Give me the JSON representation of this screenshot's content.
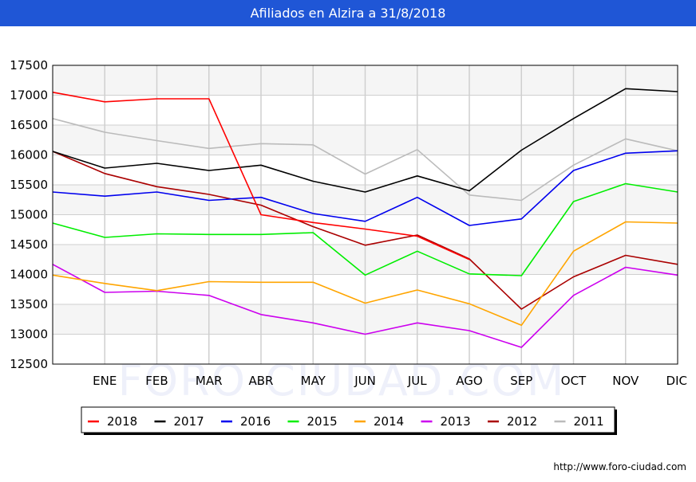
{
  "header": {
    "title": "Afiliados en Alzira a 31/8/2018"
  },
  "watermark": "FORO-CIUDAD.COM",
  "credit": "http://www.foro-ciudad.com",
  "chart_data": {
    "type": "line",
    "title": "Afiliados en Alzira a 31/8/2018",
    "xlabel": "",
    "ylabel": "",
    "ylim": [
      12500,
      17500
    ],
    "yticks": [
      12500,
      13000,
      13500,
      14000,
      14500,
      15000,
      15500,
      16000,
      16500,
      17000,
      17500
    ],
    "categories": [
      "",
      "ENE",
      "FEB",
      "MAR",
      "ABR",
      "MAY",
      "JUN",
      "JUL",
      "AGO",
      "SEP",
      "OCT",
      "NOV",
      "DIC"
    ],
    "grid": true,
    "legend_position": "bottom",
    "series": [
      {
        "name": "2018",
        "color": "#ff0000",
        "values": [
          17050,
          16890,
          16940,
          16940,
          15000,
          14870,
          14760,
          14640,
          14250,
          null,
          null,
          null,
          null
        ]
      },
      {
        "name": "2017",
        "color": "#000000",
        "values": [
          16060,
          15780,
          15860,
          15740,
          15830,
          15560,
          15380,
          15650,
          15400,
          16080,
          16610,
          17110,
          17060
        ]
      },
      {
        "name": "2016",
        "color": "#0000ee",
        "values": [
          15380,
          15310,
          15380,
          15240,
          15290,
          15020,
          14890,
          15290,
          14820,
          14930,
          15740,
          16030,
          16070
        ]
      },
      {
        "name": "2015",
        "color": "#00ee00",
        "values": [
          14860,
          14620,
          14680,
          14670,
          14670,
          14700,
          13990,
          14390,
          14010,
          13980,
          15220,
          15520,
          15380
        ]
      },
      {
        "name": "2014",
        "color": "#ffa500",
        "values": [
          13990,
          13850,
          13730,
          13880,
          13870,
          13870,
          13520,
          13740,
          13510,
          13150,
          14390,
          14880,
          14860
        ]
      },
      {
        "name": "2013",
        "color": "#cc00ee",
        "values": [
          14170,
          13700,
          13720,
          13650,
          13330,
          13190,
          13000,
          13190,
          13060,
          12780,
          13650,
          14120,
          13990
        ]
      },
      {
        "name": "2012",
        "color": "#aa0000",
        "values": [
          16060,
          15690,
          15470,
          15340,
          15160,
          14800,
          14490,
          14660,
          14260,
          13420,
          13960,
          14320,
          14170
        ]
      },
      {
        "name": "2011",
        "color": "#bbbbbb",
        "values": [
          16610,
          16380,
          16240,
          16110,
          16190,
          16170,
          15680,
          16090,
          15330,
          15240,
          15830,
          16270,
          16070
        ]
      }
    ]
  }
}
